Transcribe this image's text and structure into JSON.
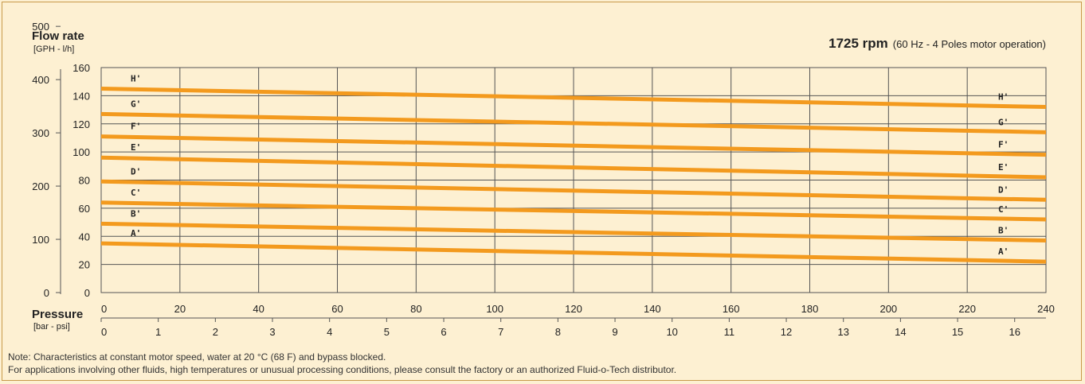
{
  "header": {
    "y_title": "Flow rate",
    "y_units": "[GPH - l/h]",
    "rpm": "1725 rpm",
    "rpm_detail": "(60 Hz - 4 Poles motor operation)",
    "x_title": "Pressure",
    "x_units": "[bar - psi]"
  },
  "notes": {
    "line1": "Note: Characteristics at constant motor speed, water at 20 °C (68 F) and bypass blocked.",
    "line2": "For applications involving other fluids, high temperatures or unusual processing conditions, please consult the factory or an authorized Fluid-o-Tech distributor."
  },
  "colors": {
    "series": "#f39a1e",
    "grid": "#555555",
    "background": "#fdf0d2"
  },
  "chart_data": {
    "type": "line",
    "x_primary": {
      "label": "psi",
      "range": [
        0,
        240
      ],
      "ticks": [
        0,
        20,
        40,
        60,
        80,
        100,
        120,
        140,
        160,
        180,
        200,
        220,
        240
      ]
    },
    "x_secondary": {
      "label": "bar",
      "ticks": [
        0,
        1,
        2,
        3,
        4,
        5,
        6,
        7,
        8,
        9,
        10,
        11,
        12,
        13,
        14,
        15,
        16
      ]
    },
    "y_primary": {
      "label": "l/h",
      "range": [
        0,
        160
      ],
      "ticks": [
        0,
        20,
        40,
        60,
        80,
        100,
        120,
        140,
        160
      ]
    },
    "y_secondary": {
      "label": "GPH",
      "ticks": [
        0,
        100,
        200,
        300,
        400,
        500
      ]
    },
    "grid": true,
    "series": [
      {
        "name": "H'",
        "x": [
          0,
          240
        ],
        "y": [
          145,
          132
        ]
      },
      {
        "name": "G'",
        "x": [
          0,
          240
        ],
        "y": [
          127,
          114
        ]
      },
      {
        "name": "F'",
        "x": [
          0,
          240
        ],
        "y": [
          111,
          98
        ]
      },
      {
        "name": "E'",
        "x": [
          0,
          240
        ],
        "y": [
          96,
          82
        ]
      },
      {
        "name": "D'",
        "x": [
          0,
          240
        ],
        "y": [
          79,
          66
        ]
      },
      {
        "name": "C'",
        "x": [
          0,
          240
        ],
        "y": [
          64,
          52
        ]
      },
      {
        "name": "B'",
        "x": [
          0,
          240
        ],
        "y": [
          49,
          37
        ]
      },
      {
        "name": "A'",
        "x": [
          0,
          240
        ],
        "y": [
          35,
          22
        ]
      }
    ]
  }
}
